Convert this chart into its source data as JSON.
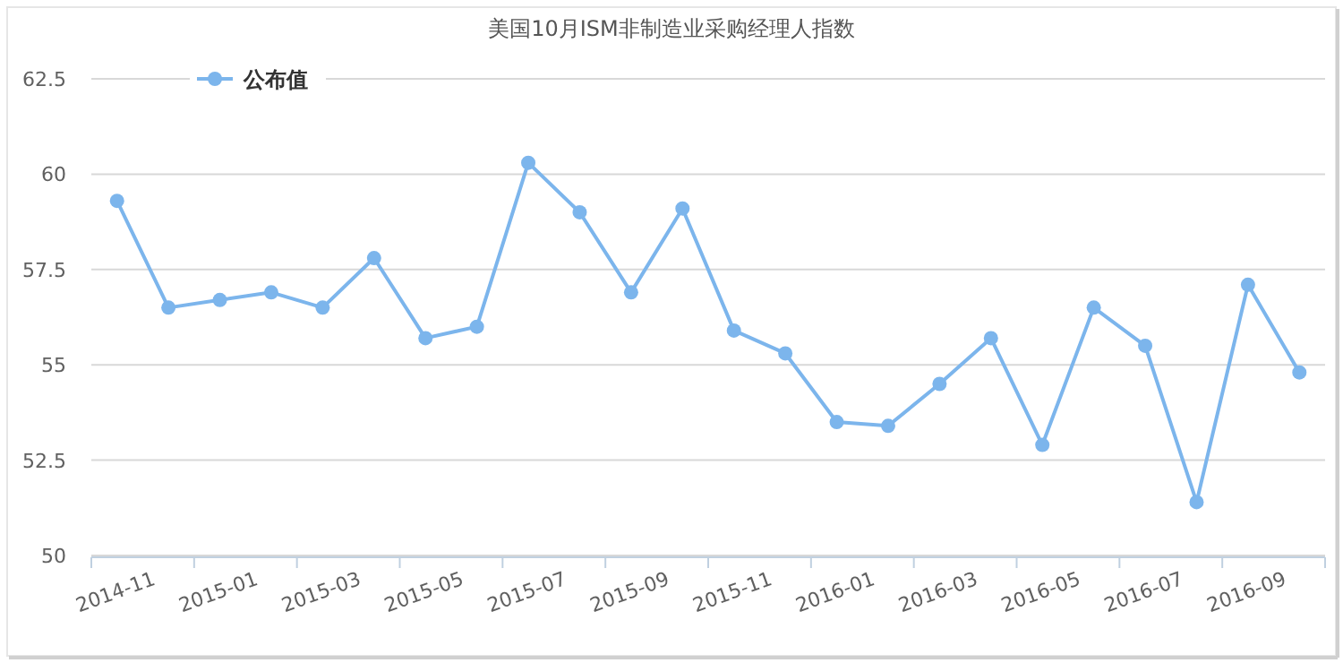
{
  "chart_data": {
    "type": "line",
    "title": "美国10月ISM非制造业采购经理人指数",
    "categories": [
      "2014-11",
      null,
      "2015-01",
      null,
      "2015-03",
      null,
      "2015-05",
      null,
      "2015-07",
      null,
      "2015-09",
      null,
      "2015-11",
      null,
      "2016-01",
      null,
      "2016-03",
      null,
      "2016-05",
      null,
      "2016-07",
      null,
      "2016-09",
      null
    ],
    "series": [
      {
        "name": "公布值",
        "color": "#7cb5ec",
        "values": [
          59.3,
          56.5,
          56.7,
          56.9,
          56.5,
          57.8,
          55.7,
          56.0,
          60.3,
          59.0,
          56.9,
          59.1,
          55.9,
          55.3,
          53.5,
          53.4,
          54.5,
          55.7,
          52.9,
          56.5,
          55.5,
          51.4,
          57.1,
          54.8
        ]
      }
    ],
    "ylim": [
      50,
      62.5
    ],
    "yticks": [
      50,
      52.5,
      55,
      57.5,
      60,
      62.5
    ],
    "grid": "y",
    "legend": "top left",
    "marker": "circle"
  }
}
